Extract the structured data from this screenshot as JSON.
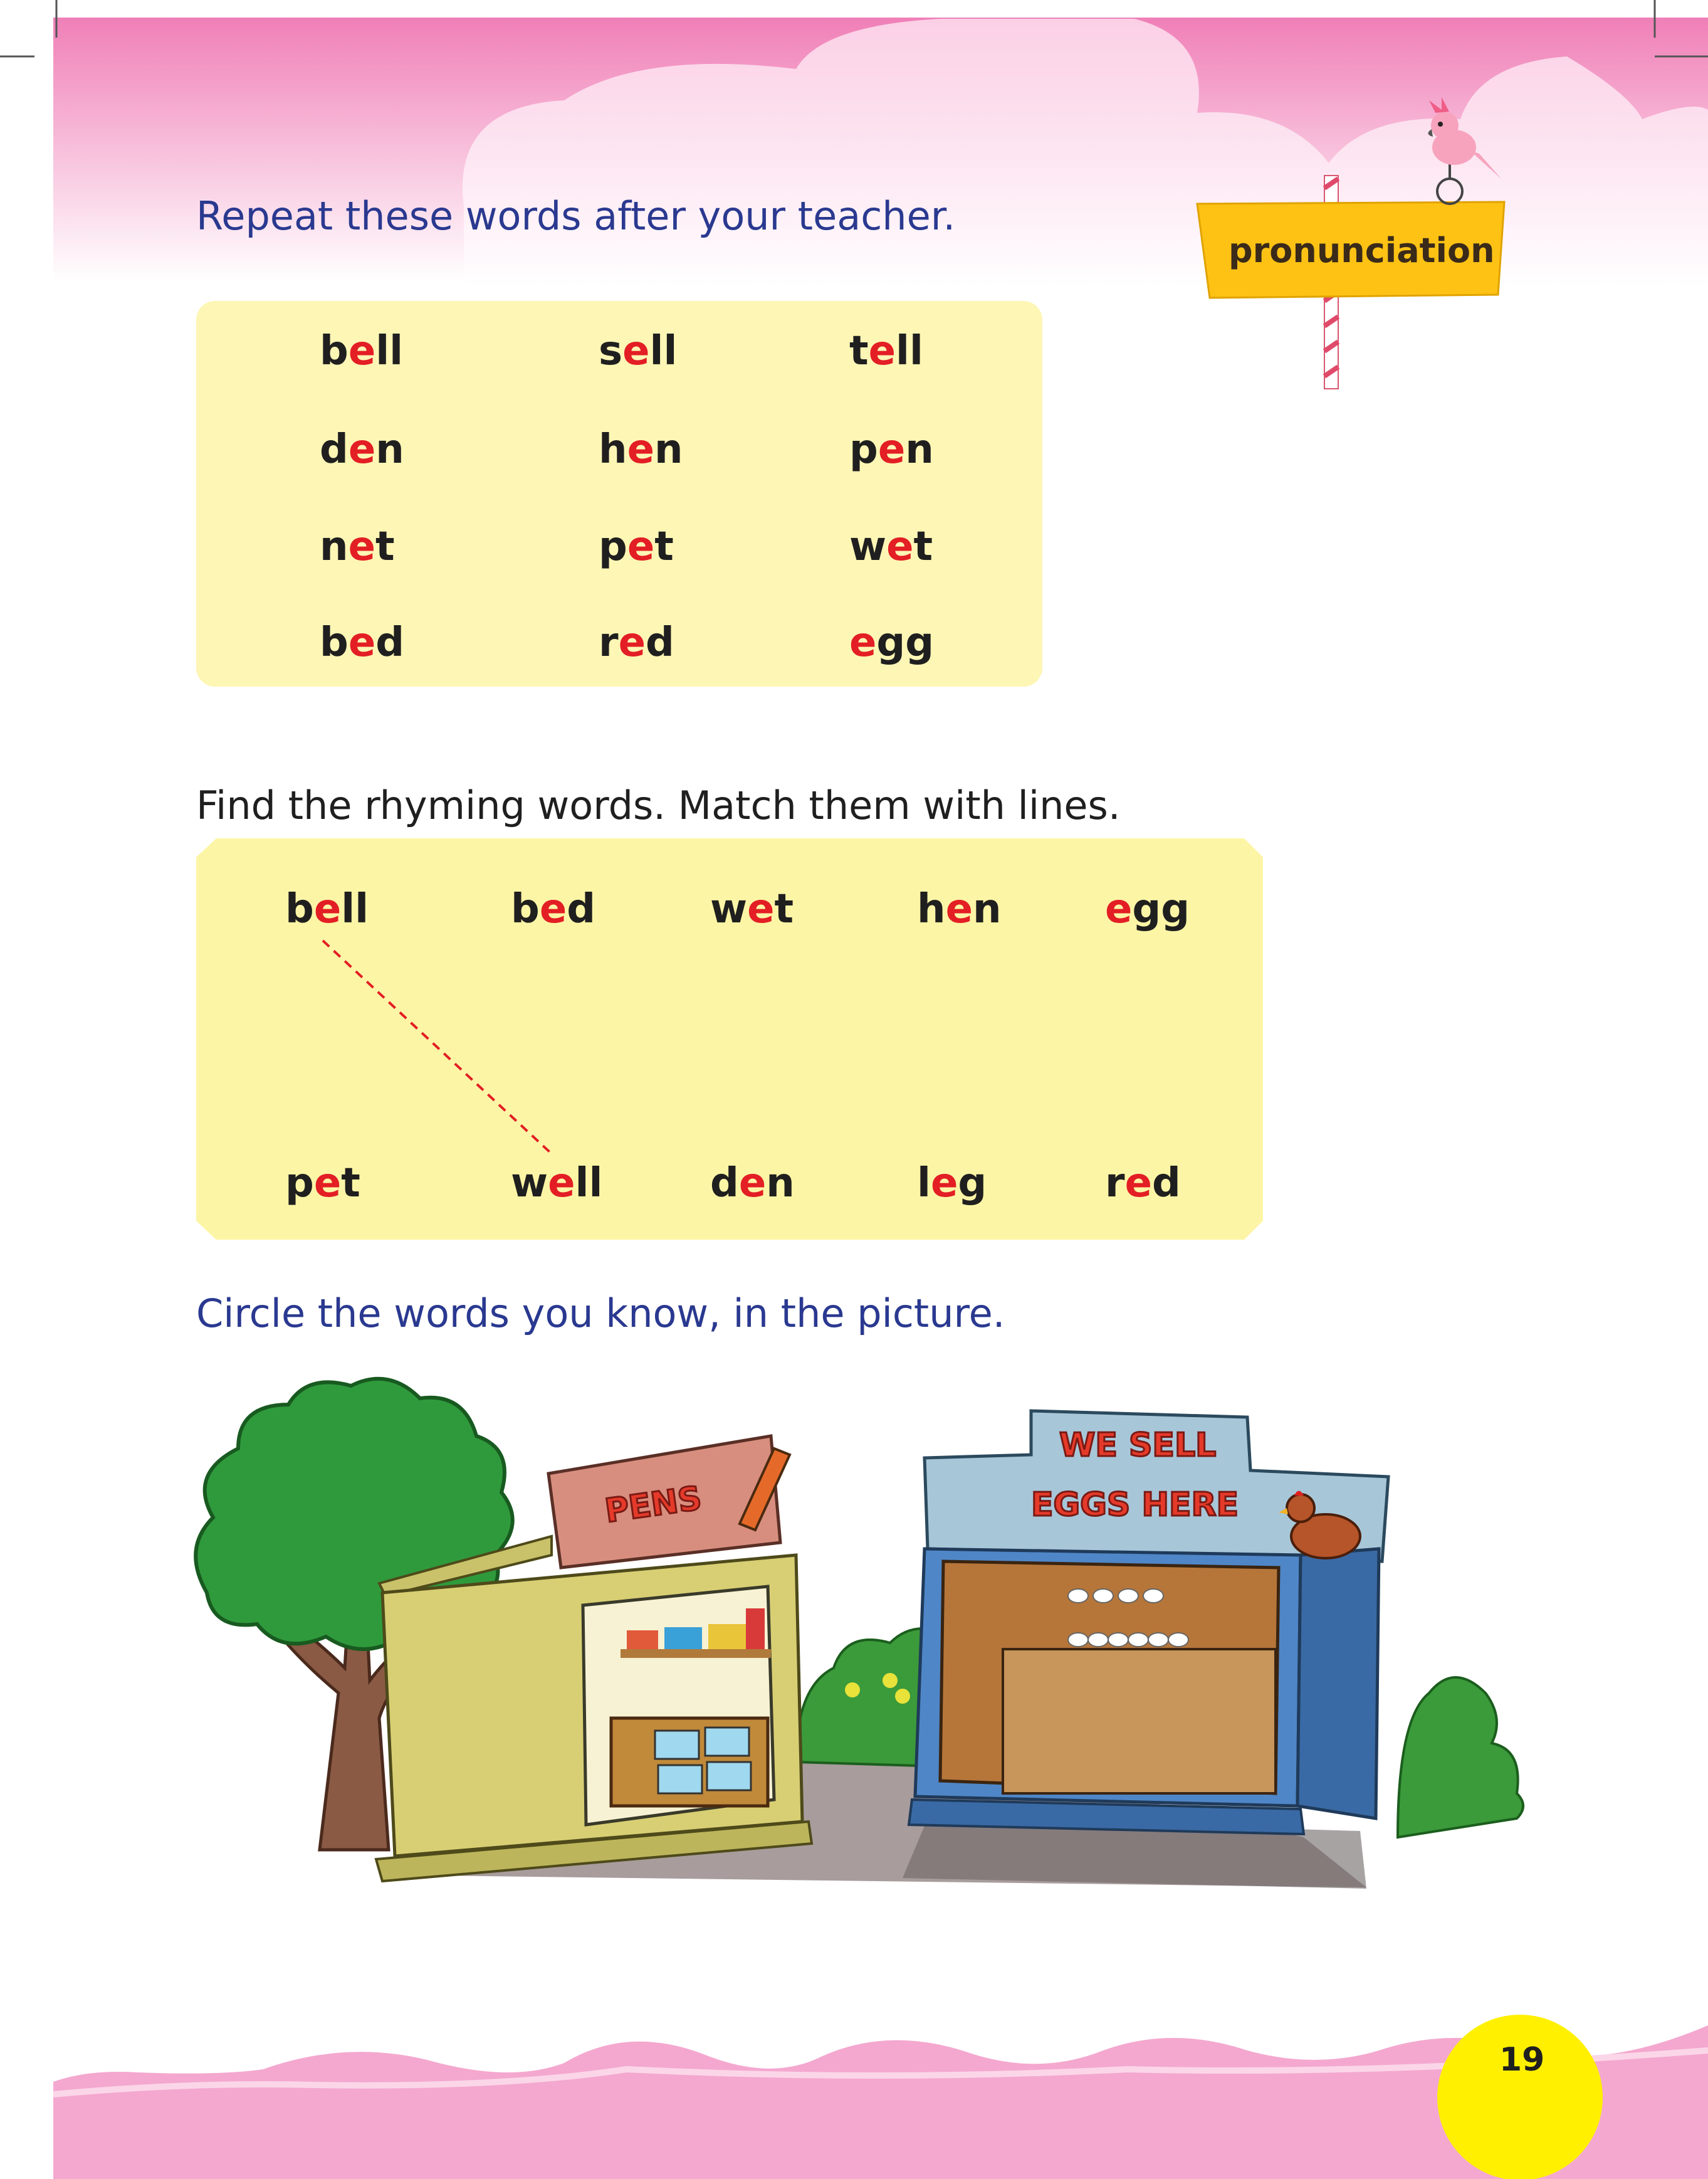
{
  "header": {
    "badge_label": "pronunciation"
  },
  "sections": {
    "repeat": {
      "instruction": "Repeat these words after your teacher.",
      "rows": [
        [
          {
            "pre": "b",
            "hl": "e",
            "post": "ll"
          },
          {
            "pre": "s",
            "hl": "e",
            "post": "ll"
          },
          {
            "pre": "t",
            "hl": "e",
            "post": "ll"
          }
        ],
        [
          {
            "pre": "d",
            "hl": "e",
            "post": "n"
          },
          {
            "pre": "h",
            "hl": "e",
            "post": "n"
          },
          {
            "pre": "p",
            "hl": "e",
            "post": "n"
          }
        ],
        [
          {
            "pre": "n",
            "hl": "e",
            "post": "t"
          },
          {
            "pre": "p",
            "hl": "e",
            "post": "t"
          },
          {
            "pre": "w",
            "hl": "e",
            "post": "t"
          }
        ],
        [
          {
            "pre": "b",
            "hl": "e",
            "post": "d"
          },
          {
            "pre": "r",
            "hl": "e",
            "post": "d"
          },
          {
            "pre": "",
            "hl": "e",
            "post": "gg"
          }
        ]
      ]
    },
    "rhyme": {
      "instruction": "Find the rhyming words. Match them with lines.",
      "top": [
        {
          "pre": "b",
          "hl": "e",
          "post": "ll"
        },
        {
          "pre": "b",
          "hl": "e",
          "post": "d"
        },
        {
          "pre": "w",
          "hl": "e",
          "post": "t"
        },
        {
          "pre": "h",
          "hl": "e",
          "post": "n"
        },
        {
          "pre": "",
          "hl": "e",
          "post": "gg"
        }
      ],
      "bottom": [
        {
          "pre": "p",
          "hl": "e",
          "post": "t"
        },
        {
          "pre": "w",
          "hl": "e",
          "post": "ll"
        },
        {
          "pre": "d",
          "hl": "e",
          "post": "n"
        },
        {
          "pre": "l",
          "hl": "e",
          "post": "g"
        },
        {
          "pre": "r",
          "hl": "e",
          "post": "d"
        }
      ]
    },
    "picture": {
      "instruction": "Circle the words you know, in the picture.",
      "pen_shop_sign": "PENS",
      "egg_shop_sign_line1": "WE SELL",
      "egg_shop_sign_line2": "EGGS HERE"
    }
  },
  "footer": {
    "page_number": "19"
  },
  "colors": {
    "pink": "#f48fc0",
    "pale_yellow": "#fdf6b5",
    "yellow_box": "#fdf5a6",
    "sign_yellow": "#fdc214",
    "highlight_red": "#e31e24",
    "instruction_blue": "#2a3990",
    "page_circle": "#fff000"
  }
}
